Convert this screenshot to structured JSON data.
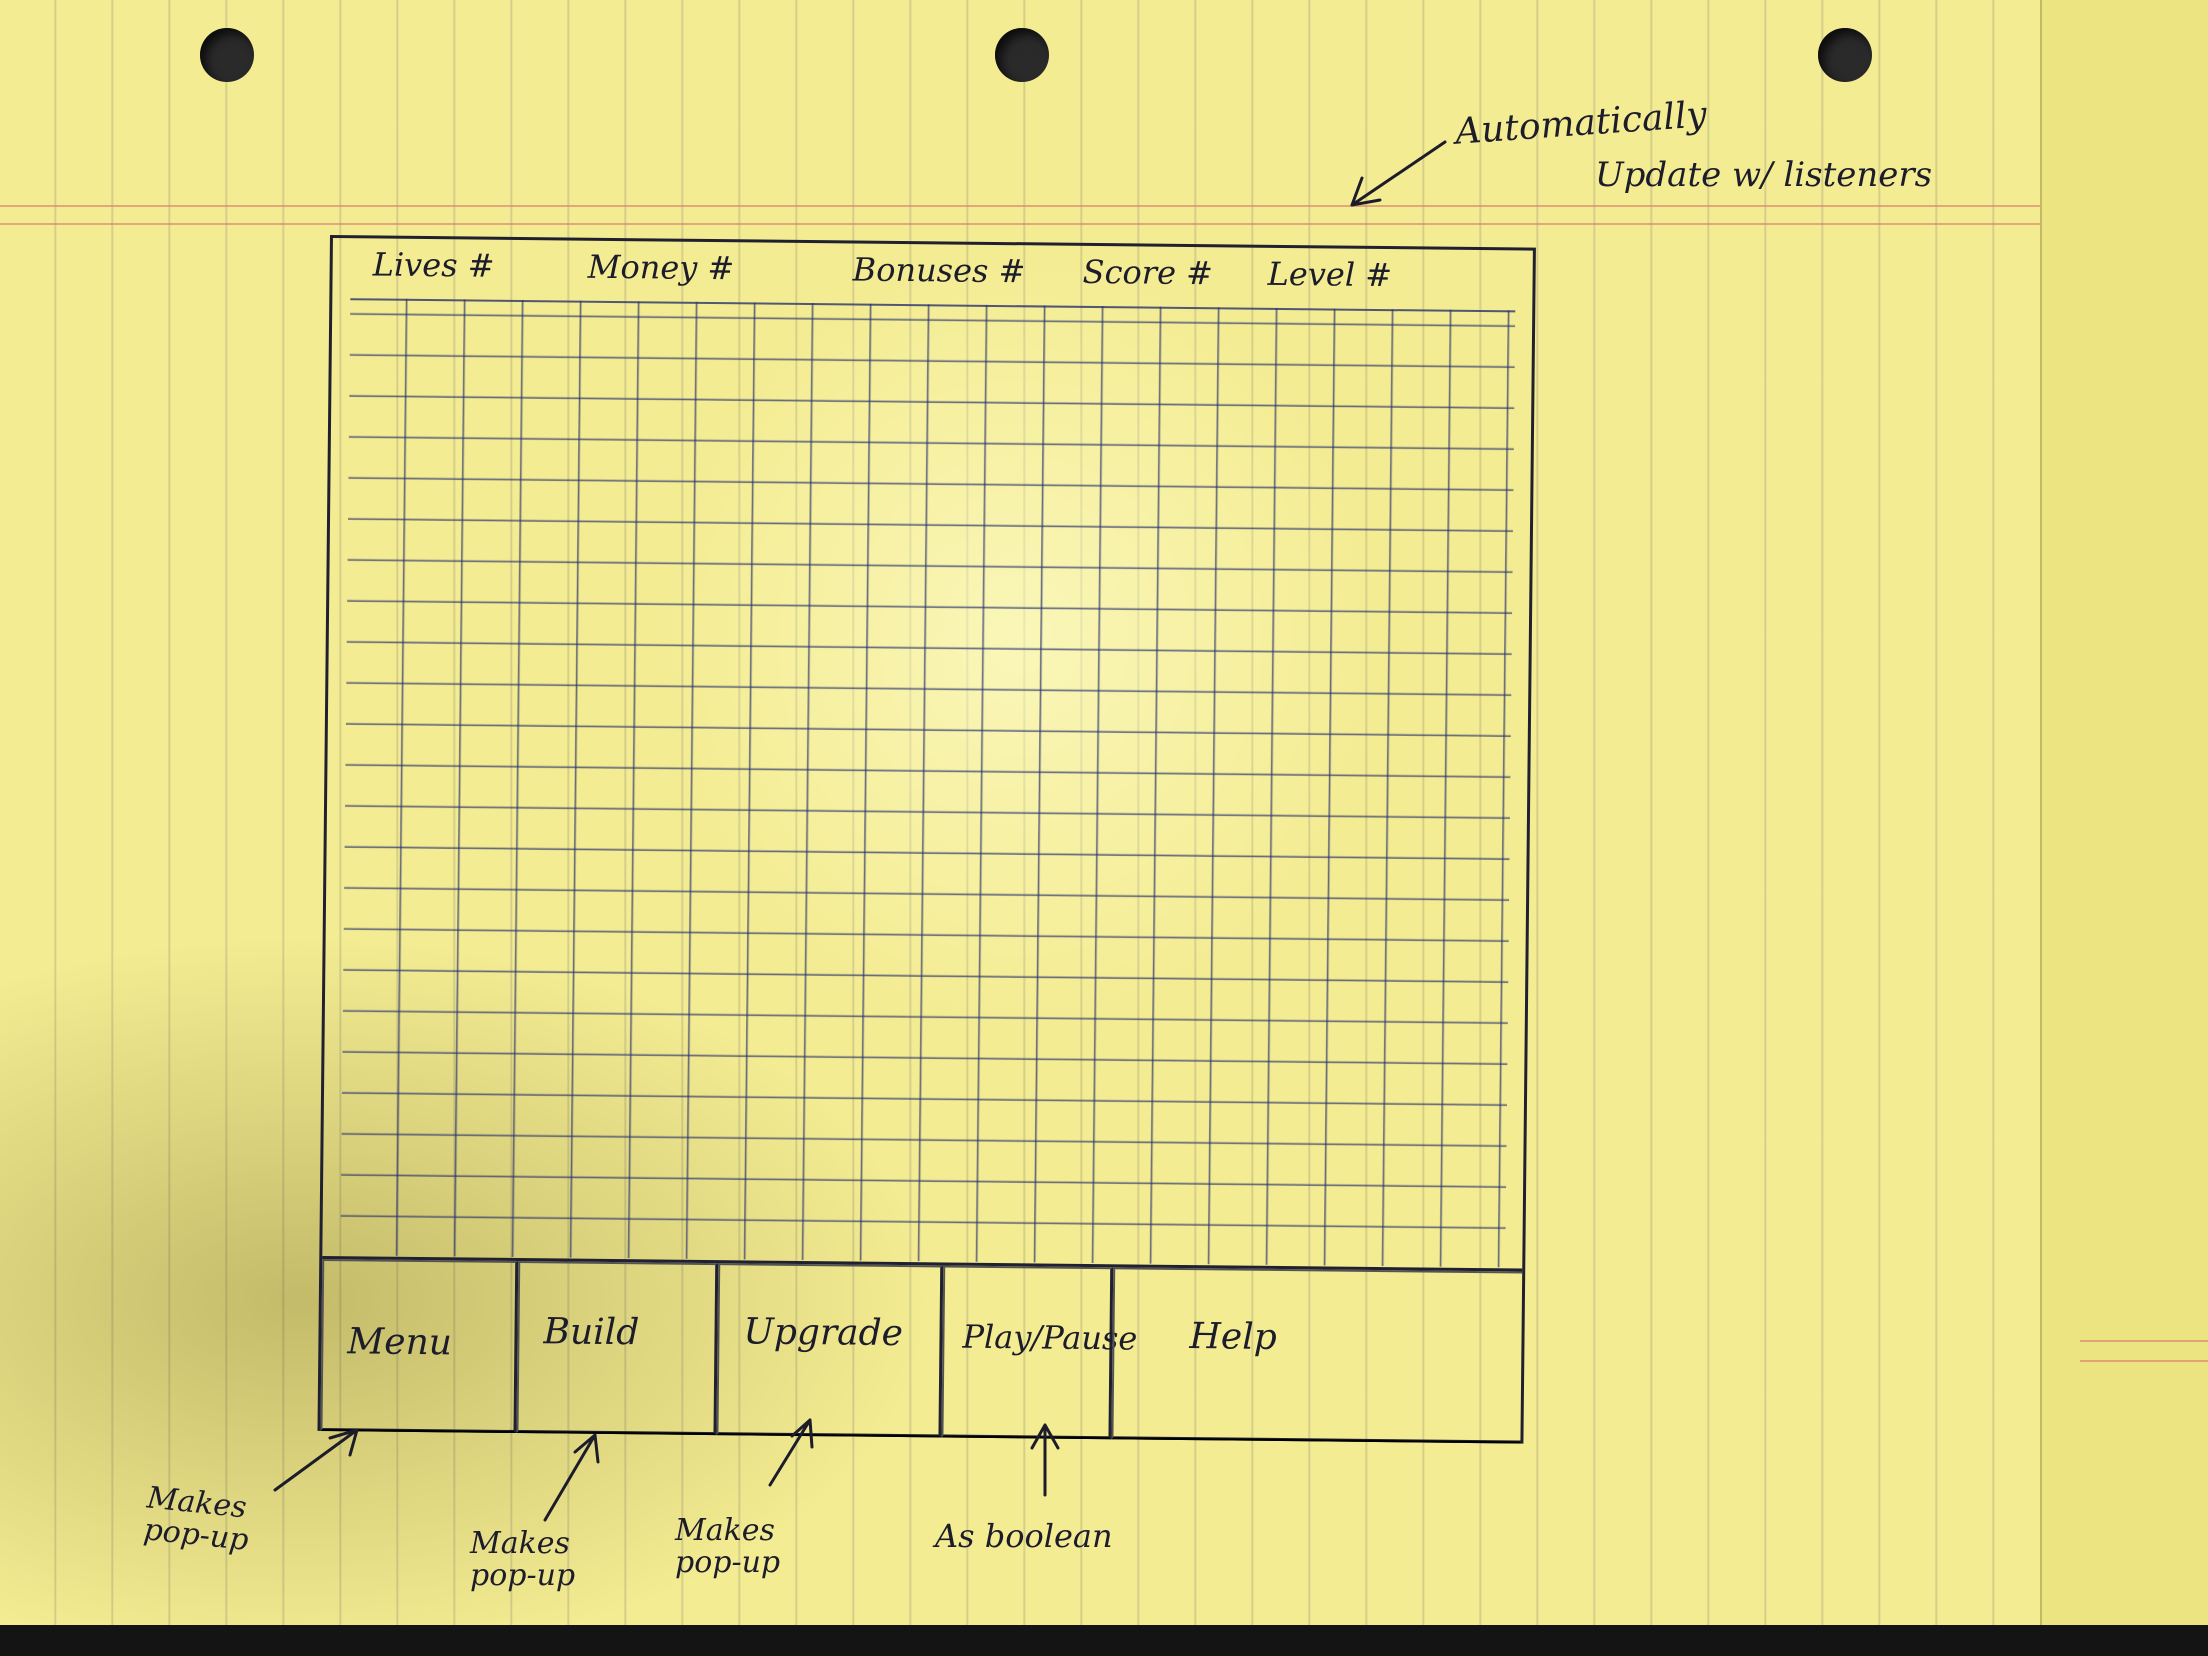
{
  "header_note": {
    "line1": "Automatically",
    "line2": "Update w/ listeners"
  },
  "stats": [
    {
      "label": "Lives #"
    },
    {
      "label": "Money #"
    },
    {
      "label": "Bonuses #"
    },
    {
      "label": "Score #"
    },
    {
      "label": "Level #"
    }
  ],
  "controls": [
    {
      "label": "Menu"
    },
    {
      "label": "Build"
    },
    {
      "label": "Upgrade"
    },
    {
      "label": "Play/Pause"
    },
    {
      "label": "Help"
    }
  ],
  "annotations": {
    "menu": "Makes pop-up",
    "build": "Makes pop-up",
    "upgrade": "Makes pop-up",
    "play": "As boolean"
  },
  "colors": {
    "paper": "#f4ec92",
    "ink": "#1c1c2a",
    "grid_ink": "#28326e"
  }
}
